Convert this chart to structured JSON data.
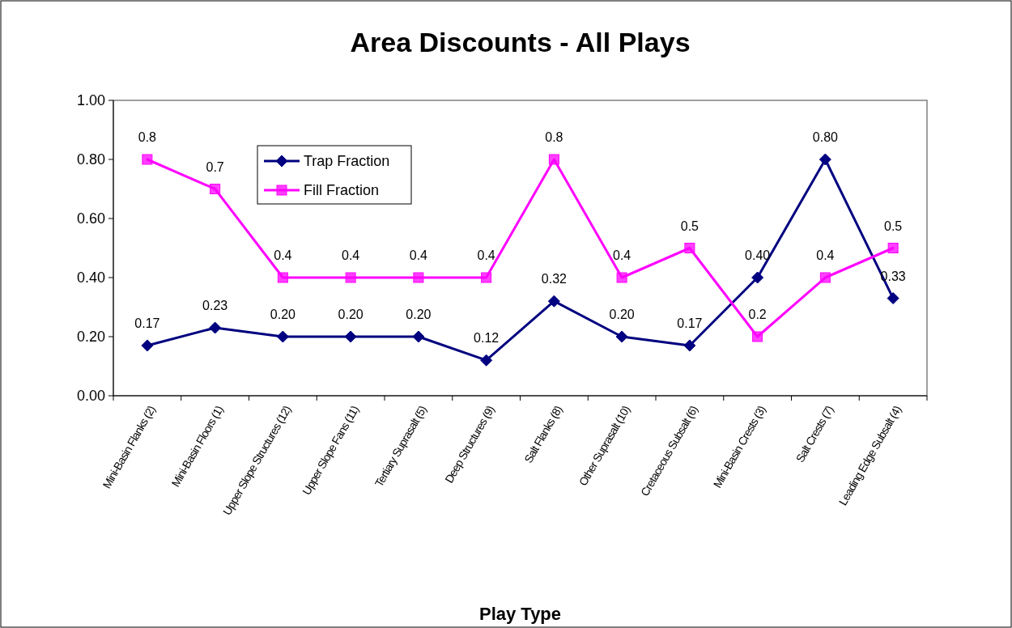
{
  "chart_data": {
    "type": "line",
    "title": "Area Discounts - All Plays",
    "xlabel": "Play Type",
    "categories": [
      "Mini-Basin Flanks (2)",
      "Mini-Basin Floors (1)",
      "Upper Slope Structures (12)",
      "Upper Slope Fans (11)",
      "Tertiary Suprasalt (5)",
      "Deep Structures (9)",
      "Salt Flanks (8)",
      "Other Suprasalt (10)",
      "Cretaceous Subsalt (6)",
      "Mini-Basin Crests (3)",
      "Salt Crests (7)",
      "Leading Edge Subsalt (4)"
    ],
    "series": [
      {
        "name": "Trap Fraction",
        "color": "#000080",
        "marker": "diamond",
        "values": [
          0.17,
          0.23,
          0.2,
          0.2,
          0.2,
          0.12,
          0.32,
          0.2,
          0.17,
          0.4,
          0.8,
          0.33
        ],
        "value_labels": [
          "0.17",
          "0.23",
          "0.20",
          "0.20",
          "0.20",
          "0.12",
          "0.32",
          "0.20",
          "0.17",
          "0.40",
          "0.80",
          "0.33"
        ]
      },
      {
        "name": "Fill Fraction",
        "color": "#ff00ff",
        "marker": "square",
        "values": [
          0.8,
          0.7,
          0.4,
          0.4,
          0.4,
          0.4,
          0.8,
          0.4,
          0.5,
          0.2,
          0.4,
          0.5
        ],
        "value_labels": [
          "0.8",
          "0.7",
          "0.4",
          "0.4",
          "0.4",
          "0.4",
          "0.8",
          "0.4",
          "0.5",
          "0.2",
          "0.4",
          "0.5"
        ]
      }
    ],
    "ylim": [
      0,
      1
    ],
    "yticks": [
      {
        "value": 0,
        "label": "0.00"
      },
      {
        "value": 0.2,
        "label": "0.20"
      },
      {
        "value": 0.4,
        "label": "0.40"
      },
      {
        "value": 0.6,
        "label": "0.60"
      },
      {
        "value": 0.8,
        "label": "0.80"
      },
      {
        "value": 1,
        "label": "1.00"
      }
    ],
    "grid": false,
    "legend": "top left",
    "line_style": "solid"
  }
}
